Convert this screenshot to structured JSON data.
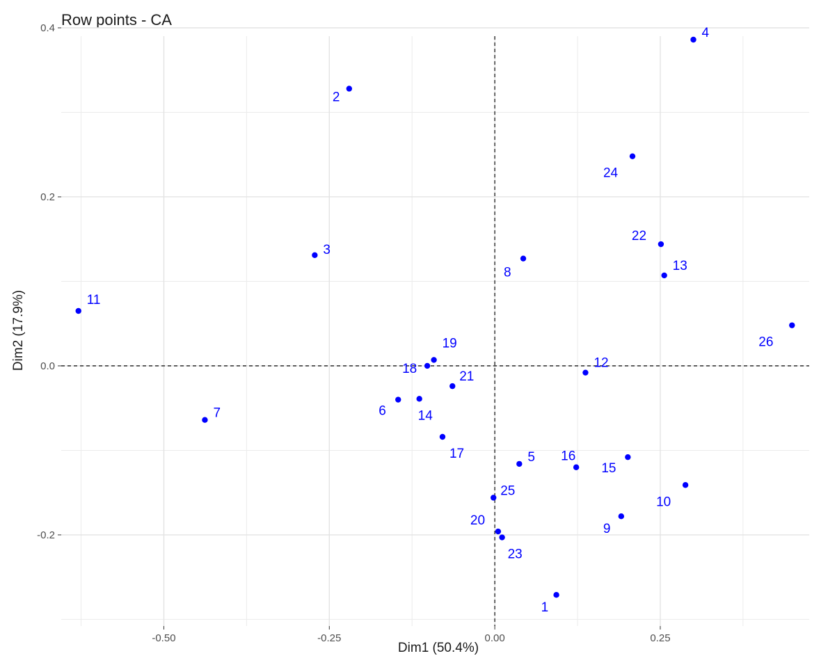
{
  "chart_data": {
    "type": "scatter",
    "title": "Row points - CA",
    "xlabel": "Dim1 (50.4%)",
    "ylabel": "Dim2 (17.9%)",
    "xlim": [
      -0.655,
      0.475
    ],
    "ylim": [
      -0.298,
      0.4
    ],
    "x_major_ticks": [
      -0.5,
      -0.25,
      0.0,
      0.25
    ],
    "x_tick_labels": [
      "-0.50",
      "-0.25",
      "0.00",
      "0.25"
    ],
    "y_major_ticks": [
      -0.2,
      0.0,
      0.2,
      0.4
    ],
    "y_tick_labels": [
      "-0.2",
      "0.0",
      "0.2",
      "0.4"
    ],
    "x_minor_ticks": [
      -0.625,
      -0.375,
      -0.125,
      0.125,
      0.375
    ],
    "y_minor_ticks": [
      -0.3,
      -0.1,
      0.1,
      0.3
    ],
    "grid": true,
    "reference_lines": {
      "x": 0,
      "y": 0,
      "style": "dashed"
    },
    "point_color": "#0000ff",
    "points": [
      {
        "label": "1",
        "x": 0.093,
        "y": -0.271
      },
      {
        "label": "2",
        "x": -0.22,
        "y": 0.328
      },
      {
        "label": "3",
        "x": -0.272,
        "y": 0.131
      },
      {
        "label": "4",
        "x": 0.3,
        "y": 0.386
      },
      {
        "label": "5",
        "x": 0.037,
        "y": -0.116
      },
      {
        "label": "6",
        "x": -0.146,
        "y": -0.04
      },
      {
        "label": "7",
        "x": -0.438,
        "y": -0.064
      },
      {
        "label": "8",
        "x": 0.043,
        "y": 0.127
      },
      {
        "label": "9",
        "x": 0.191,
        "y": -0.178
      },
      {
        "label": "10",
        "x": 0.288,
        "y": -0.141
      },
      {
        "label": "11",
        "x": -0.629,
        "y": 0.065
      },
      {
        "label": "12",
        "x": 0.137,
        "y": -0.008
      },
      {
        "label": "13",
        "x": 0.256,
        "y": 0.107
      },
      {
        "label": "14",
        "x": -0.114,
        "y": -0.039
      },
      {
        "label": "15",
        "x": 0.201,
        "y": -0.108
      },
      {
        "label": "16",
        "x": 0.123,
        "y": -0.12
      },
      {
        "label": "17",
        "x": -0.079,
        "y": -0.084
      },
      {
        "label": "18",
        "x": -0.102,
        "y": 0.0
      },
      {
        "label": "19",
        "x": -0.092,
        "y": 0.007
      },
      {
        "label": "20",
        "x": 0.005,
        "y": -0.196
      },
      {
        "label": "21",
        "x": -0.064,
        "y": -0.024
      },
      {
        "label": "22",
        "x": 0.251,
        "y": 0.144
      },
      {
        "label": "23",
        "x": 0.011,
        "y": -0.203
      },
      {
        "label": "24",
        "x": 0.208,
        "y": 0.248
      },
      {
        "label": "25",
        "x": -0.002,
        "y": -0.156
      },
      {
        "label": "26",
        "x": 0.449,
        "y": 0.048
      }
    ]
  }
}
